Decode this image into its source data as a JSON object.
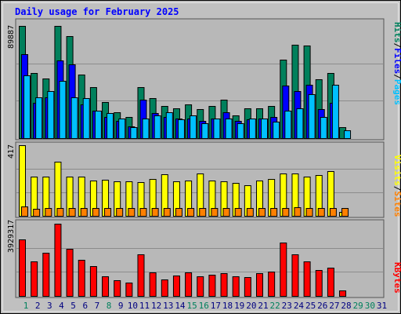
{
  "title": "Daily usage for February 2025",
  "colors": {
    "background": "#c0c0c0",
    "panel": "#b8b8b8",
    "grid": "#8c8c8c",
    "title": "#0000ff",
    "hits": "#00805c",
    "files": "#0000ff",
    "pages": "#00c0ff",
    "visits": "#ffff00",
    "sites": "#ff8000",
    "kbytes": "#ff0000",
    "weekend_label": "#00805c",
    "weekday_label": "#000080"
  },
  "chart_data": [
    {
      "type": "bar",
      "panel": "top",
      "ymax_label": "89887",
      "ylim": [
        0,
        89887
      ],
      "x": [
        1,
        2,
        3,
        4,
        5,
        6,
        7,
        8,
        9,
        10,
        11,
        12,
        13,
        14,
        15,
        16,
        17,
        18,
        19,
        20,
        21,
        22,
        23,
        24,
        25,
        26,
        27,
        28
      ],
      "series": [
        {
          "name": "Hits",
          "color": "#00805c",
          "values": [
            89887,
            52000,
            48000,
            89887,
            82000,
            51000,
            41000,
            29000,
            21000,
            17000,
            41000,
            32000,
            26000,
            24000,
            27000,
            23000,
            26000,
            31000,
            18000,
            24000,
            24000,
            26000,
            63000,
            75000,
            74000,
            47000,
            52000,
            9000
          ]
        },
        {
          "name": "Files",
          "color": "#0000ff",
          "values": [
            67000,
            28000,
            33000,
            62000,
            59000,
            27000,
            22000,
            17000,
            14000,
            9500,
            31000,
            20000,
            17000,
            16000,
            16000,
            14000,
            16000,
            21000,
            14000,
            15000,
            16000,
            17000,
            42000,
            38000,
            43000,
            23000,
            28000,
            0
          ]
        },
        {
          "name": "Pages",
          "color": "#00c0ff",
          "values": [
            50000,
            33000,
            38000,
            46000,
            33000,
            32000,
            22000,
            20000,
            16000,
            9000,
            16000,
            18000,
            21000,
            15000,
            18000,
            12000,
            16000,
            16000,
            12000,
            16000,
            16000,
            13000,
            22000,
            24000,
            35000,
            17000,
            43000,
            6000
          ]
        }
      ],
      "legend": [
        "Pages",
        "/",
        "Files",
        "/",
        "Hits"
      ]
    },
    {
      "type": "bar",
      "panel": "middle",
      "ymax_label": "417",
      "ylim": [
        0,
        417
      ],
      "x": [
        1,
        2,
        3,
        4,
        5,
        6,
        7,
        8,
        9,
        10,
        11,
        12,
        13,
        14,
        15,
        16,
        17,
        18,
        19,
        20,
        21,
        22,
        23,
        24,
        25,
        26,
        27,
        28
      ],
      "series": [
        {
          "name": "Visits",
          "color": "#ffff00",
          "values": [
            417,
            233,
            233,
            319,
            233,
            233,
            210,
            214,
            202,
            202,
            200,
            216,
            247,
            204,
            208,
            252,
            210,
            202,
            195,
            182,
            210,
            218,
            248,
            248,
            233,
            242,
            264,
            22
          ]
        },
        {
          "name": "Sites",
          "color": "#ff8000",
          "values": [
            57,
            43,
            47,
            48,
            47,
            48,
            47,
            48,
            47,
            46,
            47,
            48,
            47,
            48,
            47,
            47,
            46,
            48,
            47,
            47,
            48,
            47,
            46,
            49,
            48,
            47,
            48,
            47
          ]
        }
      ],
      "legend": [
        "Sites",
        "/",
        "Visits"
      ]
    },
    {
      "type": "bar",
      "panel": "bottom",
      "ymax_label": "3929317",
      "ylim": [
        0,
        3929317
      ],
      "x": [
        1,
        2,
        3,
        4,
        5,
        6,
        7,
        8,
        9,
        10,
        11,
        12,
        13,
        14,
        15,
        16,
        17,
        18,
        19,
        20,
        21,
        22,
        23,
        24,
        25,
        26,
        27,
        28
      ],
      "series": [
        {
          "name": "KBytes",
          "color": "#ff0000",
          "values": [
            3060000,
            1890000,
            2340000,
            3929317,
            2580000,
            1980000,
            1620000,
            1080000,
            850000,
            720000,
            2280000,
            1260000,
            900000,
            1110000,
            1260000,
            1080000,
            1170000,
            1230000,
            1080000,
            1020000,
            1230000,
            1320000,
            2920000,
            2250000,
            1890000,
            1390000,
            1530000,
            280000
          ]
        }
      ],
      "legend": [
        "KBytes"
      ]
    }
  ],
  "days": [
    "1",
    "2",
    "3",
    "4",
    "5",
    "6",
    "7",
    "8",
    "9",
    "10",
    "11",
    "12",
    "13",
    "14",
    "15",
    "16",
    "17",
    "18",
    "19",
    "20",
    "21",
    "22",
    "23",
    "24",
    "25",
    "26",
    "27",
    "28",
    "29",
    "30",
    "31"
  ],
  "weekend_days": [
    1,
    8,
    15,
    16,
    22,
    29,
    30
  ],
  "present_days": 28
}
